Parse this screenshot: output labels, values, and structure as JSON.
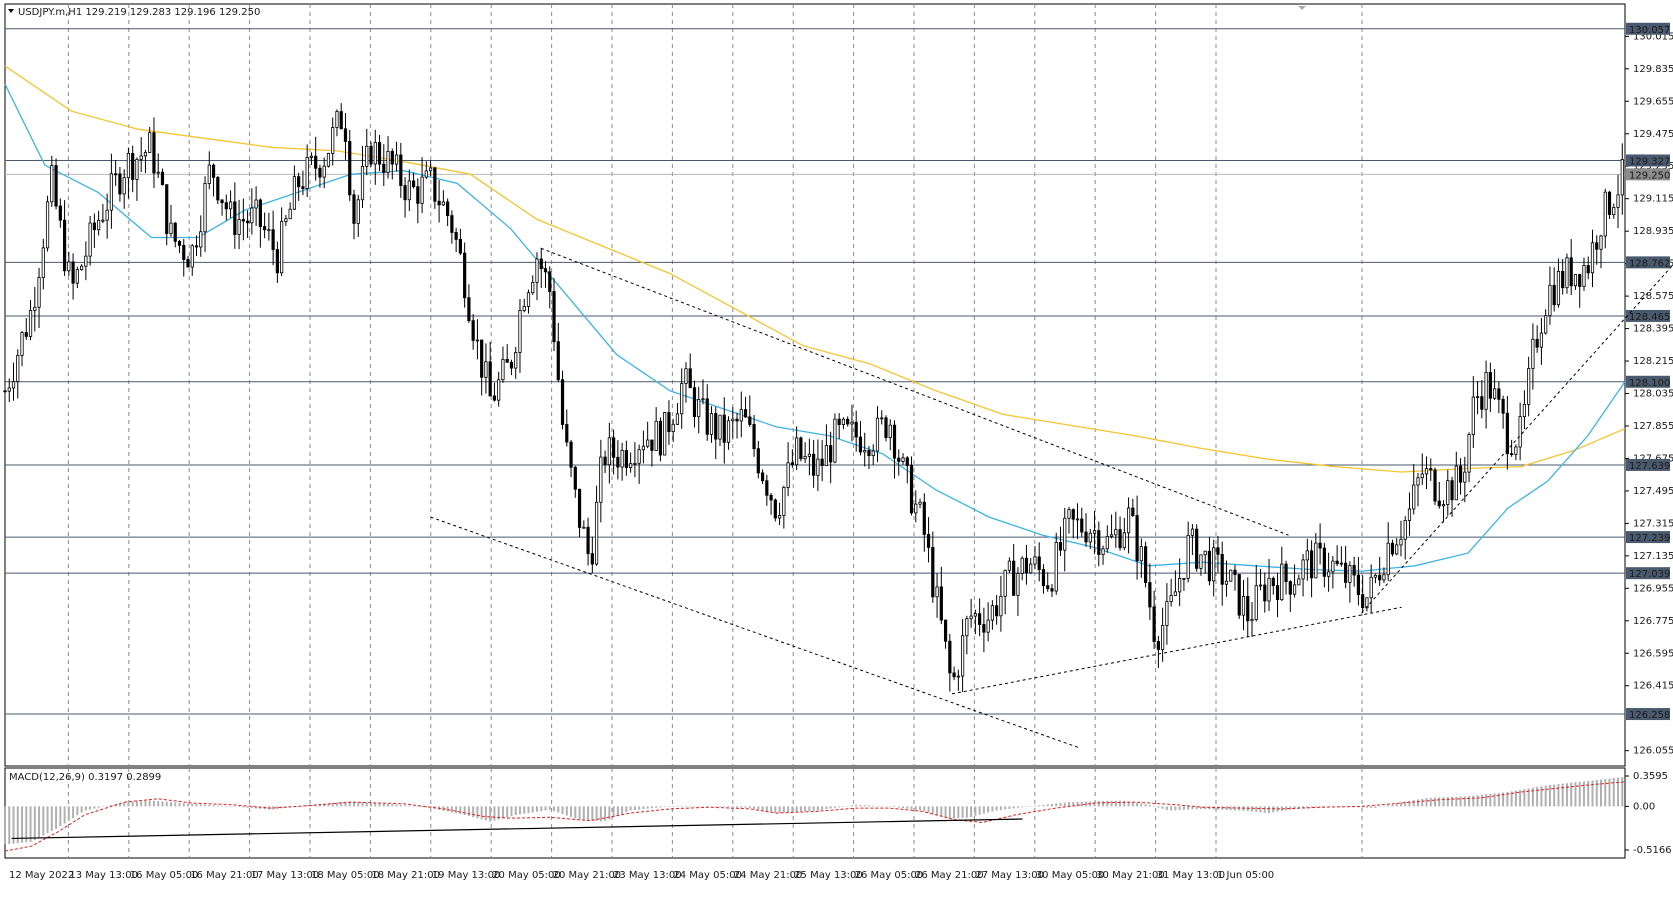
{
  "header": {
    "symbol_info": "USDJPY.m,H1  129.219 129.283 129.196 129.250",
    "macd_info": "MACD(12,26,9) 0.3197 0.2899"
  },
  "colors": {
    "background": "#ffffff",
    "grid": "#8a8a8a",
    "candle": "#000000",
    "ma_fast": "#3cb4e6",
    "ma_slow": "#f5c431",
    "level_line": "#4a5a6e",
    "level_tag_bg": "#4a5a6e",
    "current_tag_bg": "#8c8c8c",
    "macd_hist": "#b0b0b0",
    "macd_signal": "#e02020"
  },
  "chart_data": {
    "type": "candlestick",
    "price_axis": {
      "range": [
        125.97,
        130.15
      ],
      "ticks": [
        "130.015",
        "129.835",
        "129.655",
        "129.475",
        "129.295",
        "129.115",
        "128.935",
        "128.755",
        "128.575",
        "128.395",
        "128.215",
        "128.035",
        "127.855",
        "127.675",
        "127.495",
        "127.315",
        "127.135",
        "126.955",
        "126.775",
        "126.595",
        "126.415",
        "126.055"
      ]
    },
    "horizontal_levels": [
      "130.057",
      "129.327",
      "128.762",
      "128.465",
      "128.100",
      "127.639",
      "127.239",
      "127.039",
      "126.258"
    ],
    "current_price": "129.250",
    "time_labels": [
      "12 May 2022",
      "13 May 13:00",
      "16 May 05:00",
      "16 May 21:00",
      "17 May 13:00",
      "18 May 05:00",
      "18 May 21:00",
      "19 May 13:00",
      "20 May 05:00",
      "20 May 21:00",
      "23 May 13:00",
      "24 May 05:00",
      "24 May 21:00",
      "25 May 13:00",
      "26 May 05:00",
      "26 May 21:00",
      "27 May 13:00",
      "30 May 05:00",
      "30 May 21:00",
      "31 May 13:00",
      "1 Jun 05:00"
    ],
    "price_path": [
      [
        0,
        128.05
      ],
      [
        20,
        128.5
      ],
      [
        35,
        129.2
      ],
      [
        50,
        128.6
      ],
      [
        70,
        129.0
      ],
      [
        90,
        129.3
      ],
      [
        110,
        129.4
      ],
      [
        125,
        128.9
      ],
      [
        140,
        128.8
      ],
      [
        155,
        129.3
      ],
      [
        170,
        129.0
      ],
      [
        190,
        129.0
      ],
      [
        205,
        128.8
      ],
      [
        220,
        129.2
      ],
      [
        240,
        129.35
      ],
      [
        255,
        129.6
      ],
      [
        262,
        129.0
      ],
      [
        275,
        129.4
      ],
      [
        290,
        129.3
      ],
      [
        305,
        129.15
      ],
      [
        320,
        129.2
      ],
      [
        335,
        129.0
      ],
      [
        345,
        128.7
      ],
      [
        355,
        128.3
      ],
      [
        365,
        128.0
      ],
      [
        380,
        128.2
      ],
      [
        390,
        128.6
      ],
      [
        400,
        128.8
      ],
      [
        410,
        128.6
      ],
      [
        420,
        127.8
      ],
      [
        430,
        127.4
      ],
      [
        440,
        127.1
      ],
      [
        450,
        127.7
      ],
      [
        465,
        127.7
      ],
      [
        480,
        127.8
      ],
      [
        495,
        127.8
      ],
      [
        510,
        128.1
      ],
      [
        525,
        127.9
      ],
      [
        540,
        127.8
      ],
      [
        555,
        127.9
      ],
      [
        570,
        127.6
      ],
      [
        580,
        127.4
      ],
      [
        595,
        127.7
      ],
      [
        610,
        127.6
      ],
      [
        625,
        127.8
      ],
      [
        640,
        127.8
      ],
      [
        655,
        127.8
      ],
      [
        665,
        127.9
      ],
      [
        675,
        127.6
      ],
      [
        690,
        127.3
      ],
      [
        705,
        126.7
      ],
      [
        712,
        126.4
      ],
      [
        725,
        126.8
      ],
      [
        740,
        126.8
      ],
      [
        755,
        127.0
      ],
      [
        770,
        127.1
      ],
      [
        785,
        127.0
      ],
      [
        800,
        127.3
      ],
      [
        815,
        127.3
      ],
      [
        830,
        127.2
      ],
      [
        845,
        127.35
      ],
      [
        855,
        127.1
      ],
      [
        865,
        126.7
      ],
      [
        875,
        126.8
      ],
      [
        890,
        127.2
      ],
      [
        905,
        127.1
      ],
      [
        920,
        127.0
      ],
      [
        935,
        126.8
      ],
      [
        950,
        127.0
      ],
      [
        965,
        127.0
      ],
      [
        980,
        127.1
      ],
      [
        995,
        127.1
      ],
      [
        1010,
        127.0
      ],
      [
        1025,
        126.9
      ],
      [
        1040,
        127.2
      ],
      [
        1055,
        127.35
      ],
      [
        1065,
        127.6
      ],
      [
        1080,
        127.5
      ],
      [
        1095,
        127.55
      ],
      [
        1105,
        128.0
      ],
      [
        1115,
        128.1
      ],
      [
        1130,
        127.8
      ],
      [
        1140,
        127.8
      ],
      [
        1150,
        128.3
      ],
      [
        1160,
        128.6
      ],
      [
        1175,
        128.7
      ],
      [
        1190,
        128.75
      ],
      [
        1200,
        129.0
      ],
      [
        1210,
        129.15
      ],
      [
        1218,
        129.25
      ]
    ],
    "ma_fast": [
      [
        0,
        129.75
      ],
      [
        30,
        129.3
      ],
      [
        70,
        129.15
      ],
      [
        110,
        128.9
      ],
      [
        145,
        128.9
      ],
      [
        180,
        129.05
      ],
      [
        220,
        129.15
      ],
      [
        260,
        129.25
      ],
      [
        300,
        129.27
      ],
      [
        340,
        129.2
      ],
      [
        380,
        128.95
      ],
      [
        420,
        128.6
      ],
      [
        460,
        128.25
      ],
      [
        500,
        128.05
      ],
      [
        540,
        127.95
      ],
      [
        580,
        127.85
      ],
      [
        620,
        127.8
      ],
      [
        660,
        127.7
      ],
      [
        700,
        127.5
      ],
      [
        740,
        127.35
      ],
      [
        780,
        127.25
      ],
      [
        820,
        127.18
      ],
      [
        860,
        127.08
      ],
      [
        900,
        127.1
      ],
      [
        940,
        127.08
      ],
      [
        980,
        127.06
      ],
      [
        1020,
        127.05
      ],
      [
        1060,
        127.08
      ],
      [
        1100,
        127.15
      ],
      [
        1130,
        127.4
      ],
      [
        1160,
        127.55
      ],
      [
        1190,
        127.8
      ],
      [
        1218,
        128.1
      ]
    ],
    "ma_slow": [
      [
        0,
        129.85
      ],
      [
        50,
        129.6
      ],
      [
        100,
        129.5
      ],
      [
        150,
        129.45
      ],
      [
        200,
        129.4
      ],
      [
        250,
        129.38
      ],
      [
        300,
        129.32
      ],
      [
        350,
        129.25
      ],
      [
        400,
        129.0
      ],
      [
        450,
        128.85
      ],
      [
        500,
        128.7
      ],
      [
        550,
        128.5
      ],
      [
        600,
        128.3
      ],
      [
        650,
        128.2
      ],
      [
        700,
        128.05
      ],
      [
        750,
        127.92
      ],
      [
        800,
        127.86
      ],
      [
        850,
        127.8
      ],
      [
        900,
        127.73
      ],
      [
        950,
        127.67
      ],
      [
        1000,
        127.63
      ],
      [
        1050,
        127.6
      ],
      [
        1100,
        127.62
      ],
      [
        1140,
        127.63
      ],
      [
        1180,
        127.72
      ],
      [
        1218,
        127.84
      ]
    ],
    "trendlines": [
      {
        "style": "dashed",
        "from": [
          320,
          127.35
        ],
        "to": [
          808,
          126.07
        ]
      },
      {
        "style": "dashed",
        "from": [
          403,
          128.84
        ],
        "to": [
          965,
          127.25
        ]
      },
      {
        "style": "dashed",
        "from": [
          712,
          126.37
        ],
        "to": [
          1050,
          126.85
        ]
      },
      {
        "style": "dashed",
        "from": [
          1020,
          126.82
        ],
        "to": [
          1275,
          128.92
        ]
      }
    ],
    "macd": {
      "range": [
        -0.5166,
        0.3595
      ],
      "ticks": [
        "0.3595",
        "0.00",
        "-0.5166"
      ],
      "hist_keypoints": [
        [
          0,
          -0.45
        ],
        [
          20,
          -0.42
        ],
        [
          40,
          -0.25
        ],
        [
          60,
          -0.05
        ],
        [
          90,
          0.05
        ],
        [
          110,
          0.07
        ],
        [
          140,
          0.03
        ],
        [
          170,
          0.0
        ],
        [
          200,
          -0.04
        ],
        [
          230,
          0.02
        ],
        [
          260,
          0.06
        ],
        [
          290,
          0.03
        ],
        [
          320,
          -0.02
        ],
        [
          345,
          -0.1
        ],
        [
          365,
          -0.18
        ],
        [
          385,
          -0.1
        ],
        [
          410,
          -0.04
        ],
        [
          430,
          -0.15
        ],
        [
          450,
          -0.18
        ],
        [
          470,
          -0.05
        ],
        [
          500,
          0.0
        ],
        [
          530,
          0.0
        ],
        [
          560,
          -0.02
        ],
        [
          580,
          -0.08
        ],
        [
          610,
          -0.05
        ],
        [
          640,
          0.02
        ],
        [
          665,
          0.0
        ],
        [
          690,
          -0.05
        ],
        [
          710,
          -0.15
        ],
        [
          725,
          -0.13
        ],
        [
          745,
          -0.05
        ],
        [
          770,
          0.0
        ],
        [
          800,
          0.05
        ],
        [
          840,
          0.07
        ],
        [
          860,
          0.02
        ],
        [
          875,
          -0.05
        ],
        [
          900,
          -0.03
        ],
        [
          930,
          -0.05
        ],
        [
          950,
          -0.08
        ],
        [
          970,
          -0.03
        ],
        [
          1000,
          0.0
        ],
        [
          1030,
          -0.02
        ],
        [
          1050,
          0.05
        ],
        [
          1070,
          0.1
        ],
        [
          1100,
          0.12
        ],
        [
          1130,
          0.17
        ],
        [
          1160,
          0.25
        ],
        [
          1190,
          0.3
        ],
        [
          1218,
          0.35
        ]
      ],
      "signal_keypoints": [
        [
          0,
          -0.53
        ],
        [
          20,
          -0.47
        ],
        [
          40,
          -0.3
        ],
        [
          60,
          -0.1
        ],
        [
          90,
          0.05
        ],
        [
          115,
          0.09
        ],
        [
          140,
          0.04
        ],
        [
          170,
          0.02
        ],
        [
          200,
          -0.02
        ],
        [
          230,
          0.01
        ],
        [
          260,
          0.05
        ],
        [
          300,
          0.03
        ],
        [
          330,
          -0.03
        ],
        [
          360,
          -0.12
        ],
        [
          380,
          -0.14
        ],
        [
          410,
          -0.13
        ],
        [
          440,
          -0.17
        ],
        [
          470,
          -0.08
        ],
        [
          500,
          -0.03
        ],
        [
          530,
          -0.01
        ],
        [
          560,
          -0.03
        ],
        [
          580,
          -0.08
        ],
        [
          610,
          -0.06
        ],
        [
          640,
          -0.02
        ],
        [
          665,
          -0.02
        ],
        [
          690,
          -0.06
        ],
        [
          715,
          -0.16
        ],
        [
          735,
          -0.19
        ],
        [
          760,
          -0.1
        ],
        [
          790,
          -0.02
        ],
        [
          820,
          0.04
        ],
        [
          850,
          0.05
        ],
        [
          880,
          0.02
        ],
        [
          900,
          -0.01
        ],
        [
          930,
          -0.02
        ],
        [
          960,
          -0.03
        ],
        [
          990,
          -0.01
        ],
        [
          1020,
          0.0
        ],
        [
          1050,
          0.04
        ],
        [
          1080,
          0.08
        ],
        [
          1110,
          0.1
        ],
        [
          1140,
          0.17
        ],
        [
          1170,
          0.22
        ],
        [
          1195,
          0.26
        ],
        [
          1218,
          0.29
        ]
      ],
      "trendline": {
        "from": [
          5,
          -0.38
        ],
        "to": [
          765,
          -0.15
        ]
      }
    }
  }
}
